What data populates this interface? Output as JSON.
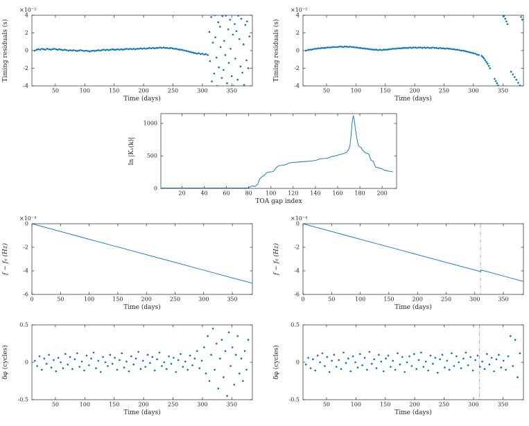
{
  "figure": {
    "background": "#ffffff",
    "accent_color": "#0072BD",
    "axis_color": "#262626",
    "text_color": "#262626",
    "vline_color": "#999999"
  },
  "chart_data": [
    {
      "id": "timing-residuals-a",
      "type": "scatter",
      "xlabel": "Time (days)",
      "ylabel": "Timing residuals (s)",
      "ylabel_italic": false,
      "exp": "×10⁻²",
      "xlim": [
        10,
        385
      ],
      "ylim": [
        -4,
        4
      ],
      "xticks": [
        50,
        100,
        150,
        200,
        250,
        300,
        350
      ],
      "yticks": [
        -4,
        -2,
        0,
        2,
        4
      ],
      "grid": false,
      "vline": null,
      "x": [
        15,
        18,
        21,
        24,
        27,
        30,
        33,
        36,
        39,
        42,
        45,
        48,
        51,
        54,
        57,
        60,
        63,
        66,
        69,
        72,
        75,
        78,
        81,
        84,
        87,
        90,
        93,
        96,
        99,
        102,
        105,
        108,
        111,
        114,
        117,
        120,
        123,
        126,
        129,
        132,
        135,
        138,
        141,
        144,
        147,
        150,
        153,
        156,
        159,
        162,
        165,
        168,
        171,
        174,
        177,
        180,
        183,
        186,
        189,
        192,
        195,
        198,
        201,
        204,
        207,
        210,
        213,
        216,
        219,
        222,
        225,
        228,
        231,
        234,
        237,
        240,
        243,
        246,
        249,
        252,
        255,
        258,
        261,
        264,
        267,
        270,
        273,
        276,
        279,
        282,
        285,
        288,
        291,
        294,
        297,
        300,
        303,
        306,
        309,
        312,
        313,
        315,
        316,
        318,
        320,
        321,
        322,
        324,
        325,
        327,
        328,
        330,
        331,
        333,
        334,
        336,
        337,
        339,
        340,
        342,
        344,
        345,
        347,
        348,
        350,
        352,
        353,
        355,
        356,
        358,
        360,
        361,
        363,
        365,
        366,
        368,
        370,
        371,
        373,
        375,
        376,
        378,
        380
      ],
      "y": [
        0,
        0.1,
        0.15,
        0.1,
        0.2,
        0.15,
        0.1,
        0.2,
        0.15,
        0.1,
        0.15,
        0.2,
        0.15,
        0.1,
        0.15,
        0.1,
        0.05,
        0.1,
        0.05,
        0,
        0.05,
        0,
        0.05,
        0,
        -0.05,
        0,
        0.05,
        0,
        -0.05,
        0,
        -0.05,
        -0.1,
        -0.05,
        0,
        -0.05,
        0,
        0.05,
        0,
        0.05,
        0.1,
        0.05,
        0.1,
        0.05,
        0.1,
        0.15,
        0.1,
        0.1,
        0.15,
        0.1,
        0.15,
        0.1,
        0.15,
        0.2,
        0.15,
        0.2,
        0.15,
        0.2,
        0.15,
        0.2,
        0.2,
        0.25,
        0.2,
        0.25,
        0.2,
        0.25,
        0.3,
        0.25,
        0.3,
        0.25,
        0.3,
        0.3,
        0.35,
        0.3,
        0.35,
        0.3,
        0.3,
        0.25,
        0.3,
        0.25,
        0.2,
        0.2,
        0.15,
        0.1,
        0.1,
        0.05,
        0,
        -0.05,
        -0.1,
        -0.15,
        -0.2,
        -0.25,
        -0.3,
        -0.35,
        -0.3,
        -0.4,
        -0.35,
        -0.45,
        -0.4,
        -0.5,
        2.1,
        -1.2,
        3.8,
        -3.5,
        0.9,
        -2.6,
        4,
        1.5,
        -0.8,
        -4,
        3.2,
        -1.9,
        2.7,
        0.4,
        -3.1,
        3.9,
        -2.2,
        1.1,
        -0.5,
        3.95,
        -3.7,
        2.4,
        -1.4,
        3.5,
        0.2,
        -2.9,
        1.8,
        -4,
        3,
        -0.9,
        2.2,
        -3.3,
        3.95,
        1.3,
        -1.8,
        3.6,
        -2.5,
        0.7,
        -3.9,
        2.9,
        -1.1,
        3.3,
        -2,
        1.6
      ]
    },
    {
      "id": "timing-residuals-b",
      "type": "scatter",
      "xlabel": "Time (days)",
      "ylabel": "Timing residuals (s)",
      "ylabel_italic": false,
      "exp": "×10⁻²",
      "xlim": [
        10,
        385
      ],
      "ylim": [
        -4,
        4
      ],
      "xticks": [
        50,
        100,
        150,
        200,
        250,
        300,
        350
      ],
      "yticks": [
        -4,
        -2,
        0,
        2,
        4
      ],
      "grid": false,
      "vline": null,
      "x": [
        15,
        18,
        21,
        24,
        27,
        30,
        33,
        36,
        39,
        42,
        45,
        48,
        51,
        54,
        57,
        60,
        63,
        66,
        69,
        72,
        75,
        78,
        81,
        84,
        87,
        90,
        93,
        96,
        99,
        102,
        105,
        108,
        111,
        114,
        117,
        120,
        123,
        126,
        129,
        132,
        135,
        138,
        141,
        144,
        147,
        150,
        153,
        156,
        159,
        162,
        165,
        168,
        171,
        174,
        177,
        180,
        183,
        186,
        189,
        192,
        195,
        198,
        201,
        204,
        207,
        210,
        213,
        216,
        219,
        222,
        225,
        228,
        231,
        234,
        237,
        240,
        243,
        246,
        249,
        252,
        255,
        258,
        261,
        264,
        267,
        270,
        273,
        276,
        279,
        282,
        285,
        288,
        291,
        294,
        297,
        300,
        303,
        306,
        309,
        314,
        316,
        318,
        320,
        322,
        324,
        326,
        328,
        336,
        338,
        340,
        342,
        352,
        354,
        356,
        358,
        364,
        367,
        370,
        373,
        376,
        379,
        381,
        383
      ],
      "y": [
        0,
        0.05,
        0.1,
        0.1,
        0.15,
        0.2,
        0.2,
        0.25,
        0.25,
        0.3,
        0.3,
        0.3,
        0.35,
        0.35,
        0.35,
        0.4,
        0.4,
        0.4,
        0.4,
        0.45,
        0.45,
        0.4,
        0.45,
        0.45,
        0.4,
        0.45,
        0.4,
        0.4,
        0.35,
        0.35,
        0.3,
        0.3,
        0.25,
        0.25,
        0.2,
        0.2,
        0.15,
        0.15,
        0.1,
        0.1,
        0.1,
        0.05,
        0.1,
        0.05,
        0.1,
        0.1,
        0.1,
        0.15,
        0.15,
        0.2,
        0.2,
        0.2,
        0.25,
        0.25,
        0.25,
        0.3,
        0.3,
        0.3,
        0.3,
        0.35,
        0.3,
        0.35,
        0.35,
        0.3,
        0.35,
        0.35,
        0.3,
        0.35,
        0.3,
        0.35,
        0.3,
        0.3,
        0.35,
        0.3,
        0.3,
        0.25,
        0.3,
        0.25,
        0.25,
        0.2,
        0.25,
        0.2,
        0.2,
        0.15,
        0.15,
        0.1,
        0.1,
        0.05,
        0,
        0,
        -0.05,
        -0.1,
        -0.15,
        -0.2,
        -0.25,
        -0.3,
        -0.35,
        -0.45,
        -0.5,
        -0.6,
        -0.75,
        -0.9,
        -1.1,
        -1.3,
        -1.5,
        -1.75,
        -2,
        -3.2,
        -3.45,
        -3.7,
        -3.95,
        3.9,
        3.6,
        3.3,
        3,
        -2.4,
        -2.7,
        -3,
        -3.3,
        -3.65,
        -3.95,
        3.8,
        3.5
      ]
    },
    {
      "id": "gap-likelihood",
      "type": "line",
      "xlabel": "TOA gap index",
      "ylabel": "ln |K₁(k)|",
      "ylabel_italic": false,
      "exp": "",
      "xlim": [
        1,
        213
      ],
      "ylim": [
        0,
        1150
      ],
      "xticks": [
        20,
        40,
        60,
        80,
        100,
        120,
        140,
        160,
        180,
        200
      ],
      "yticks": [
        0,
        500,
        1000
      ],
      "grid": false,
      "vline": null,
      "x": [
        1,
        10,
        20,
        30,
        40,
        50,
        60,
        70,
        78,
        80,
        82,
        84,
        85,
        86,
        88,
        90,
        92,
        94,
        96,
        98,
        100,
        102,
        104,
        106,
        108,
        110,
        112,
        114,
        116,
        118,
        120,
        124,
        128,
        132,
        136,
        140,
        142,
        144,
        148,
        152,
        154,
        158,
        160,
        162,
        164,
        166,
        168,
        170,
        171,
        172,
        173,
        174,
        175,
        176,
        177,
        178,
        179,
        180,
        181,
        182,
        184,
        186,
        188,
        190,
        192,
        194,
        196,
        198,
        200,
        202,
        204,
        206,
        208,
        210
      ],
      "y": [
        5,
        5,
        5,
        5,
        5,
        5,
        5,
        5,
        5,
        10,
        30,
        40,
        30,
        35,
        60,
        150,
        180,
        200,
        240,
        250,
        255,
        260,
        300,
        340,
        350,
        355,
        360,
        370,
        390,
        395,
        400,
        405,
        410,
        415,
        420,
        430,
        440,
        455,
        460,
        470,
        490,
        500,
        510,
        520,
        530,
        540,
        555,
        600,
        650,
        800,
        1000,
        1120,
        1050,
        900,
        800,
        700,
        650,
        640,
        630,
        600,
        560,
        540,
        530,
        430,
        420,
        330,
        320,
        310,
        300,
        280,
        270,
        265,
        260,
        255
      ]
    },
    {
      "id": "frequency-drift-a",
      "type": "line",
      "xlabel": "Time (days)",
      "ylabel": "f − f₀ (Hz)",
      "ylabel_italic": true,
      "exp": "×10⁻⁴",
      "xlim": [
        0,
        385
      ],
      "ylim": [
        -6,
        0
      ],
      "xticks": [
        0,
        50,
        100,
        150,
        200,
        250,
        300,
        350
      ],
      "yticks": [
        -6,
        -4,
        -2,
        0
      ],
      "grid": false,
      "vline": null,
      "x": [
        0,
        50,
        100,
        150,
        200,
        250,
        300,
        350,
        385
      ],
      "y": [
        0,
        -0.66,
        -1.32,
        -1.97,
        -2.63,
        -3.28,
        -3.94,
        -4.6,
        -5.05
      ]
    },
    {
      "id": "frequency-drift-b",
      "type": "line",
      "xlabel": "Time (days)",
      "ylabel": "f − f₀ (Hz)",
      "ylabel_italic": true,
      "exp": "×10⁻⁴",
      "xlim": [
        0,
        385
      ],
      "ylim": [
        -6,
        0
      ],
      "xticks": [
        0,
        50,
        100,
        150,
        200,
        250,
        300,
        350
      ],
      "yticks": [
        -6,
        -4,
        -2,
        0
      ],
      "grid": false,
      "vline": 310,
      "x": [
        0,
        50,
        100,
        150,
        200,
        250,
        300,
        308,
        310,
        311,
        313,
        320,
        350,
        385
      ],
      "y": [
        0,
        -0.66,
        -1.32,
        -1.97,
        -2.63,
        -3.28,
        -3.93,
        -4.04,
        -4.07,
        -3.92,
        -3.95,
        -4.04,
        -4.44,
        -4.9
      ]
    },
    {
      "id": "phase-residuals-a",
      "type": "scatter",
      "xlabel": "Time (days)",
      "ylabel": "δφ (cycles)",
      "ylabel_italic": false,
      "exp": "",
      "xlim": [
        10,
        385
      ],
      "ylim": [
        -0.5,
        0.5
      ],
      "xticks": [
        50,
        100,
        150,
        200,
        250,
        300,
        350
      ],
      "yticks": [
        -0.5,
        0,
        0.5
      ],
      "grid": false,
      "vline": null,
      "x": [
        15,
        19,
        23,
        27,
        31,
        35,
        39,
        43,
        47,
        51,
        55,
        59,
        63,
        67,
        71,
        75,
        79,
        83,
        87,
        91,
        95,
        99,
        103,
        107,
        111,
        115,
        119,
        123,
        127,
        131,
        135,
        139,
        143,
        147,
        151,
        155,
        159,
        163,
        167,
        171,
        175,
        179,
        183,
        187,
        191,
        195,
        199,
        203,
        207,
        211,
        215,
        219,
        223,
        227,
        231,
        235,
        239,
        243,
        247,
        251,
        255,
        259,
        263,
        267,
        271,
        275,
        279,
        283,
        287,
        291,
        295,
        299,
        303,
        306,
        309,
        312,
        315,
        318,
        321,
        324,
        327,
        330,
        333,
        336,
        339,
        342,
        345,
        348,
        351,
        354,
        357,
        360,
        363,
        366,
        369,
        372,
        375,
        378
      ],
      "y": [
        0.02,
        -0.05,
        0.08,
        -0.1,
        0.05,
        -0.02,
        0.1,
        -0.07,
        0.03,
        -0.12,
        0.06,
        0,
        -0.08,
        0.11,
        -0.03,
        0.07,
        -0.09,
        0.04,
        0.12,
        -0.06,
        0.01,
        -0.11,
        0.09,
        -0.04,
        0.05,
        0.13,
        -0.08,
        0.02,
        -0.13,
        0.07,
        0,
        -0.05,
        0.1,
        -0.02,
        0.06,
        -0.1,
        0.03,
        0.12,
        -0.07,
        0.01,
        -0.12,
        0.08,
        -0.03,
        0.05,
        0.14,
        -0.09,
        0.02,
        -0.06,
        0.1,
        -0.01,
        0.07,
        -0.11,
        0.04,
        0.13,
        -0.05,
        0,
        -0.09,
        0.08,
        -0.02,
        0.06,
        -0.13,
        0.03,
        0.11,
        -0.06,
        0.01,
        -0.1,
        0.09,
        -0.04,
        0.05,
        0.15,
        -0.08,
        0.02,
        0.2,
        -0.15,
        0.35,
        -0.25,
        0.1,
        0.45,
        -0.1,
        0.25,
        -0.35,
        0.05,
        0.3,
        -0.2,
        0.15,
        -0.45,
        0.4,
        -0.05,
        0.2,
        -0.3,
        0.1,
        0.35,
        -0.15,
        0.05,
        -0.25,
        0.15,
        -0.1,
        0.3
      ]
    },
    {
      "id": "phase-residuals-b",
      "type": "scatter",
      "xlabel": "Time (days)",
      "ylabel": "δφ (cycles)",
      "ylabel_italic": false,
      "exp": "",
      "xlim": [
        10,
        385
      ],
      "ylim": [
        -0.5,
        0.5
      ],
      "xticks": [
        50,
        100,
        150,
        200,
        250,
        300,
        350
      ],
      "yticks": [
        -0.5,
        0,
        0.5
      ],
      "grid": false,
      "vline": 310,
      "x": [
        15,
        19,
        23,
        27,
        31,
        35,
        39,
        43,
        47,
        51,
        55,
        59,
        63,
        67,
        71,
        75,
        79,
        83,
        87,
        91,
        95,
        99,
        103,
        107,
        111,
        115,
        119,
        123,
        127,
        131,
        135,
        139,
        143,
        147,
        151,
        155,
        159,
        163,
        167,
        171,
        175,
        179,
        183,
        187,
        191,
        195,
        199,
        203,
        207,
        211,
        215,
        219,
        223,
        227,
        231,
        235,
        239,
        243,
        247,
        251,
        255,
        259,
        263,
        267,
        271,
        275,
        279,
        283,
        287,
        291,
        295,
        299,
        303,
        307,
        311,
        315,
        319,
        323,
        327,
        331,
        335,
        339,
        343,
        347,
        351,
        355,
        359,
        363,
        367,
        371,
        375,
        379
      ],
      "y": [
        -0.03,
        0.06,
        -0.08,
        0.04,
        -0.11,
        0.09,
        0,
        0.12,
        -0.05,
        0.07,
        -0.13,
        0.02,
        0.1,
        -0.06,
        0.03,
        -0.09,
        0.13,
        -0.01,
        0.05,
        -0.12,
        0.08,
        0,
        -0.07,
        0.11,
        -0.04,
        0.06,
        -0.1,
        0.14,
        -0.02,
        0.04,
        -0.08,
        0.1,
        0.01,
        -0.12,
        0.05,
        0.09,
        -0.06,
        0.02,
        -0.1,
        0.12,
        -0.03,
        0.07,
        -0.13,
        0,
        0.08,
        -0.05,
        0.11,
        -0.09,
        0.03,
        0.13,
        -0.06,
        0.01,
        -0.11,
        0.09,
        -0.02,
        0.06,
        -0.14,
        0.04,
        0.1,
        -0.07,
        0.02,
        -0.1,
        0.12,
        -0.05,
        0.08,
        0,
        -0.08,
        0.05,
        0.13,
        -0.04,
        0.07,
        -0.11,
        0.03,
        0.09,
        -0.06,
        0.01,
        -0.09,
        0.11,
        -0.03,
        0.06,
        -0.12,
        0.04,
        0.1,
        -0.07,
        0.02,
        -0.1,
        0.08,
        0.35,
        -0.05,
        0.3,
        -0.2,
        0.12
      ]
    }
  ]
}
